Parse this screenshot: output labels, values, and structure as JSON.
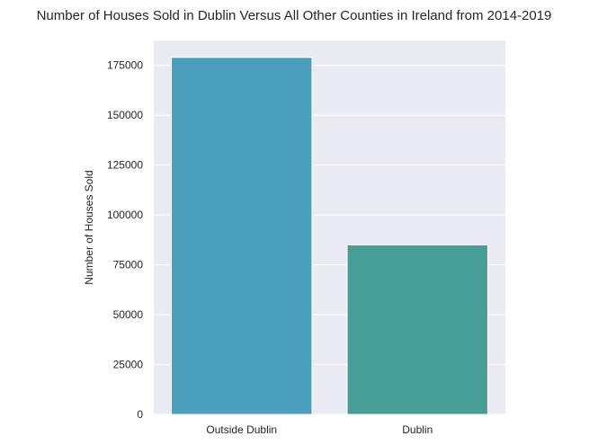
{
  "chart_data": {
    "type": "bar",
    "title": "Number of Houses Sold in Dublin Versus All Other Counties in Ireland from 2014-2019",
    "xlabel": "",
    "ylabel": "Number of Houses Sold",
    "categories": [
      "Outside Dublin",
      "Dublin"
    ],
    "values": [
      179000,
      85000
    ],
    "ylim": [
      0,
      187500
    ],
    "yticks": [
      0,
      25000,
      50000,
      75000,
      100000,
      125000,
      150000,
      175000
    ],
    "ytick_labels": [
      "0",
      "25000",
      "50000",
      "75000",
      "100000",
      "125000",
      "150000",
      "175000"
    ],
    "grid": true,
    "legend": "none",
    "colors": {
      "bars": [
        "#4a9fbd",
        "#469e96"
      ],
      "plot_background": "#eaeaf2",
      "grid": "#ffffff",
      "text": "#262626"
    }
  }
}
